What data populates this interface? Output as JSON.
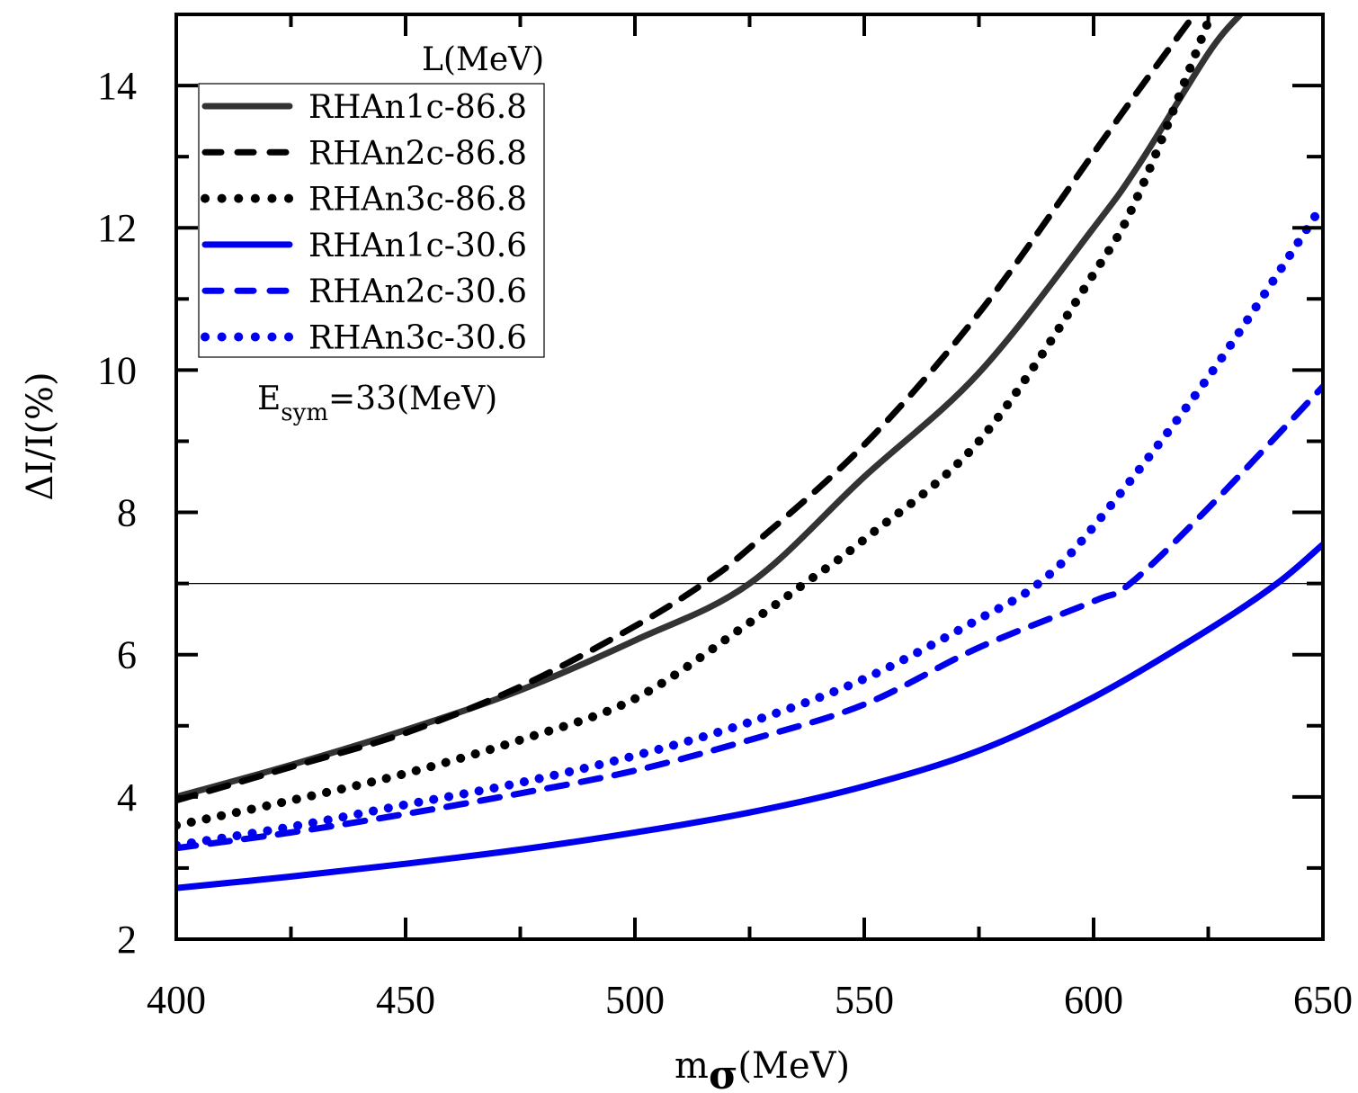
{
  "chart_data": {
    "type": "line",
    "title": "",
    "xlabel": "m",
    "xlabel_subscript": "σ",
    "xlabel_unit": "(MeV)",
    "ylabel": "ΔI/I(%)",
    "xlim": [
      400,
      650
    ],
    "ylim": [
      2,
      15
    ],
    "xticks": [
      400,
      450,
      500,
      550,
      600,
      650
    ],
    "yticks": [
      2,
      4,
      6,
      8,
      10,
      12,
      14
    ],
    "xtick_labels": [
      "400",
      "450",
      "500",
      "550",
      "600",
      "650"
    ],
    "ytick_labels": [
      "2",
      "4",
      "6",
      "8",
      "10",
      "12",
      "14"
    ],
    "reference_line_y": 7,
    "legend_title": "L(MeV)",
    "legend_position": "top-left",
    "annotation": {
      "main": "E",
      "sub": "sym",
      "rest": "=33(MeV)"
    },
    "series": [
      {
        "name": "RHAn1c-86.8",
        "color": "#333333",
        "style": "solid",
        "x": [
          400,
          425,
          450,
          475,
          500,
          525,
          550,
          575,
          600,
          610,
          625,
          632
        ],
        "y": [
          4.0,
          4.45,
          4.94,
          5.5,
          6.2,
          7.0,
          8.5,
          9.96,
          12.0,
          12.9,
          14.45,
          15.0
        ]
      },
      {
        "name": "RHAn2c-86.8",
        "color": "#000000",
        "style": "dashed",
        "x": [
          400,
          425,
          450,
          475,
          500,
          515,
          525,
          550,
          575,
          600,
          610,
          622
        ],
        "y": [
          3.95,
          4.42,
          4.9,
          5.55,
          6.4,
          7.0,
          7.5,
          8.95,
          10.8,
          13.05,
          13.95,
          15.0
        ]
      },
      {
        "name": "RHAn3c-86.8",
        "color": "#000000",
        "style": "dotted",
        "x": [
          400,
          425,
          450,
          475,
          500,
          525,
          537,
          550,
          575,
          600,
          610,
          625
        ],
        "y": [
          3.6,
          3.95,
          4.33,
          4.8,
          5.38,
          6.45,
          7.0,
          7.62,
          9.0,
          11.35,
          12.5,
          14.9
        ]
      },
      {
        "name": "RHAn1c-30.6",
        "color": "#0000ee",
        "style": "solid",
        "x": [
          400,
          425,
          450,
          475,
          500,
          525,
          550,
          575,
          600,
          625,
          640,
          650
        ],
        "y": [
          2.72,
          2.88,
          3.06,
          3.26,
          3.5,
          3.78,
          4.15,
          4.65,
          5.4,
          6.35,
          7.0,
          7.55
        ]
      },
      {
        "name": "RHAn2c-30.6",
        "color": "#0000ee",
        "style": "dashed",
        "x": [
          400,
          425,
          450,
          475,
          500,
          525,
          550,
          575,
          600,
          608,
          625,
          650
        ],
        "y": [
          3.28,
          3.5,
          3.76,
          4.05,
          4.37,
          4.8,
          5.3,
          6.1,
          6.75,
          7.0,
          8.06,
          9.77
        ]
      },
      {
        "name": "RHAn3c-30.6",
        "color": "#0000ee",
        "style": "dotted",
        "x": [
          400,
          425,
          450,
          475,
          500,
          525,
          550,
          575,
          588,
          600,
          625,
          650
        ],
        "y": [
          3.32,
          3.58,
          3.89,
          4.2,
          4.58,
          5.05,
          5.66,
          6.5,
          7.0,
          7.8,
          9.9,
          12.33
        ]
      }
    ]
  }
}
